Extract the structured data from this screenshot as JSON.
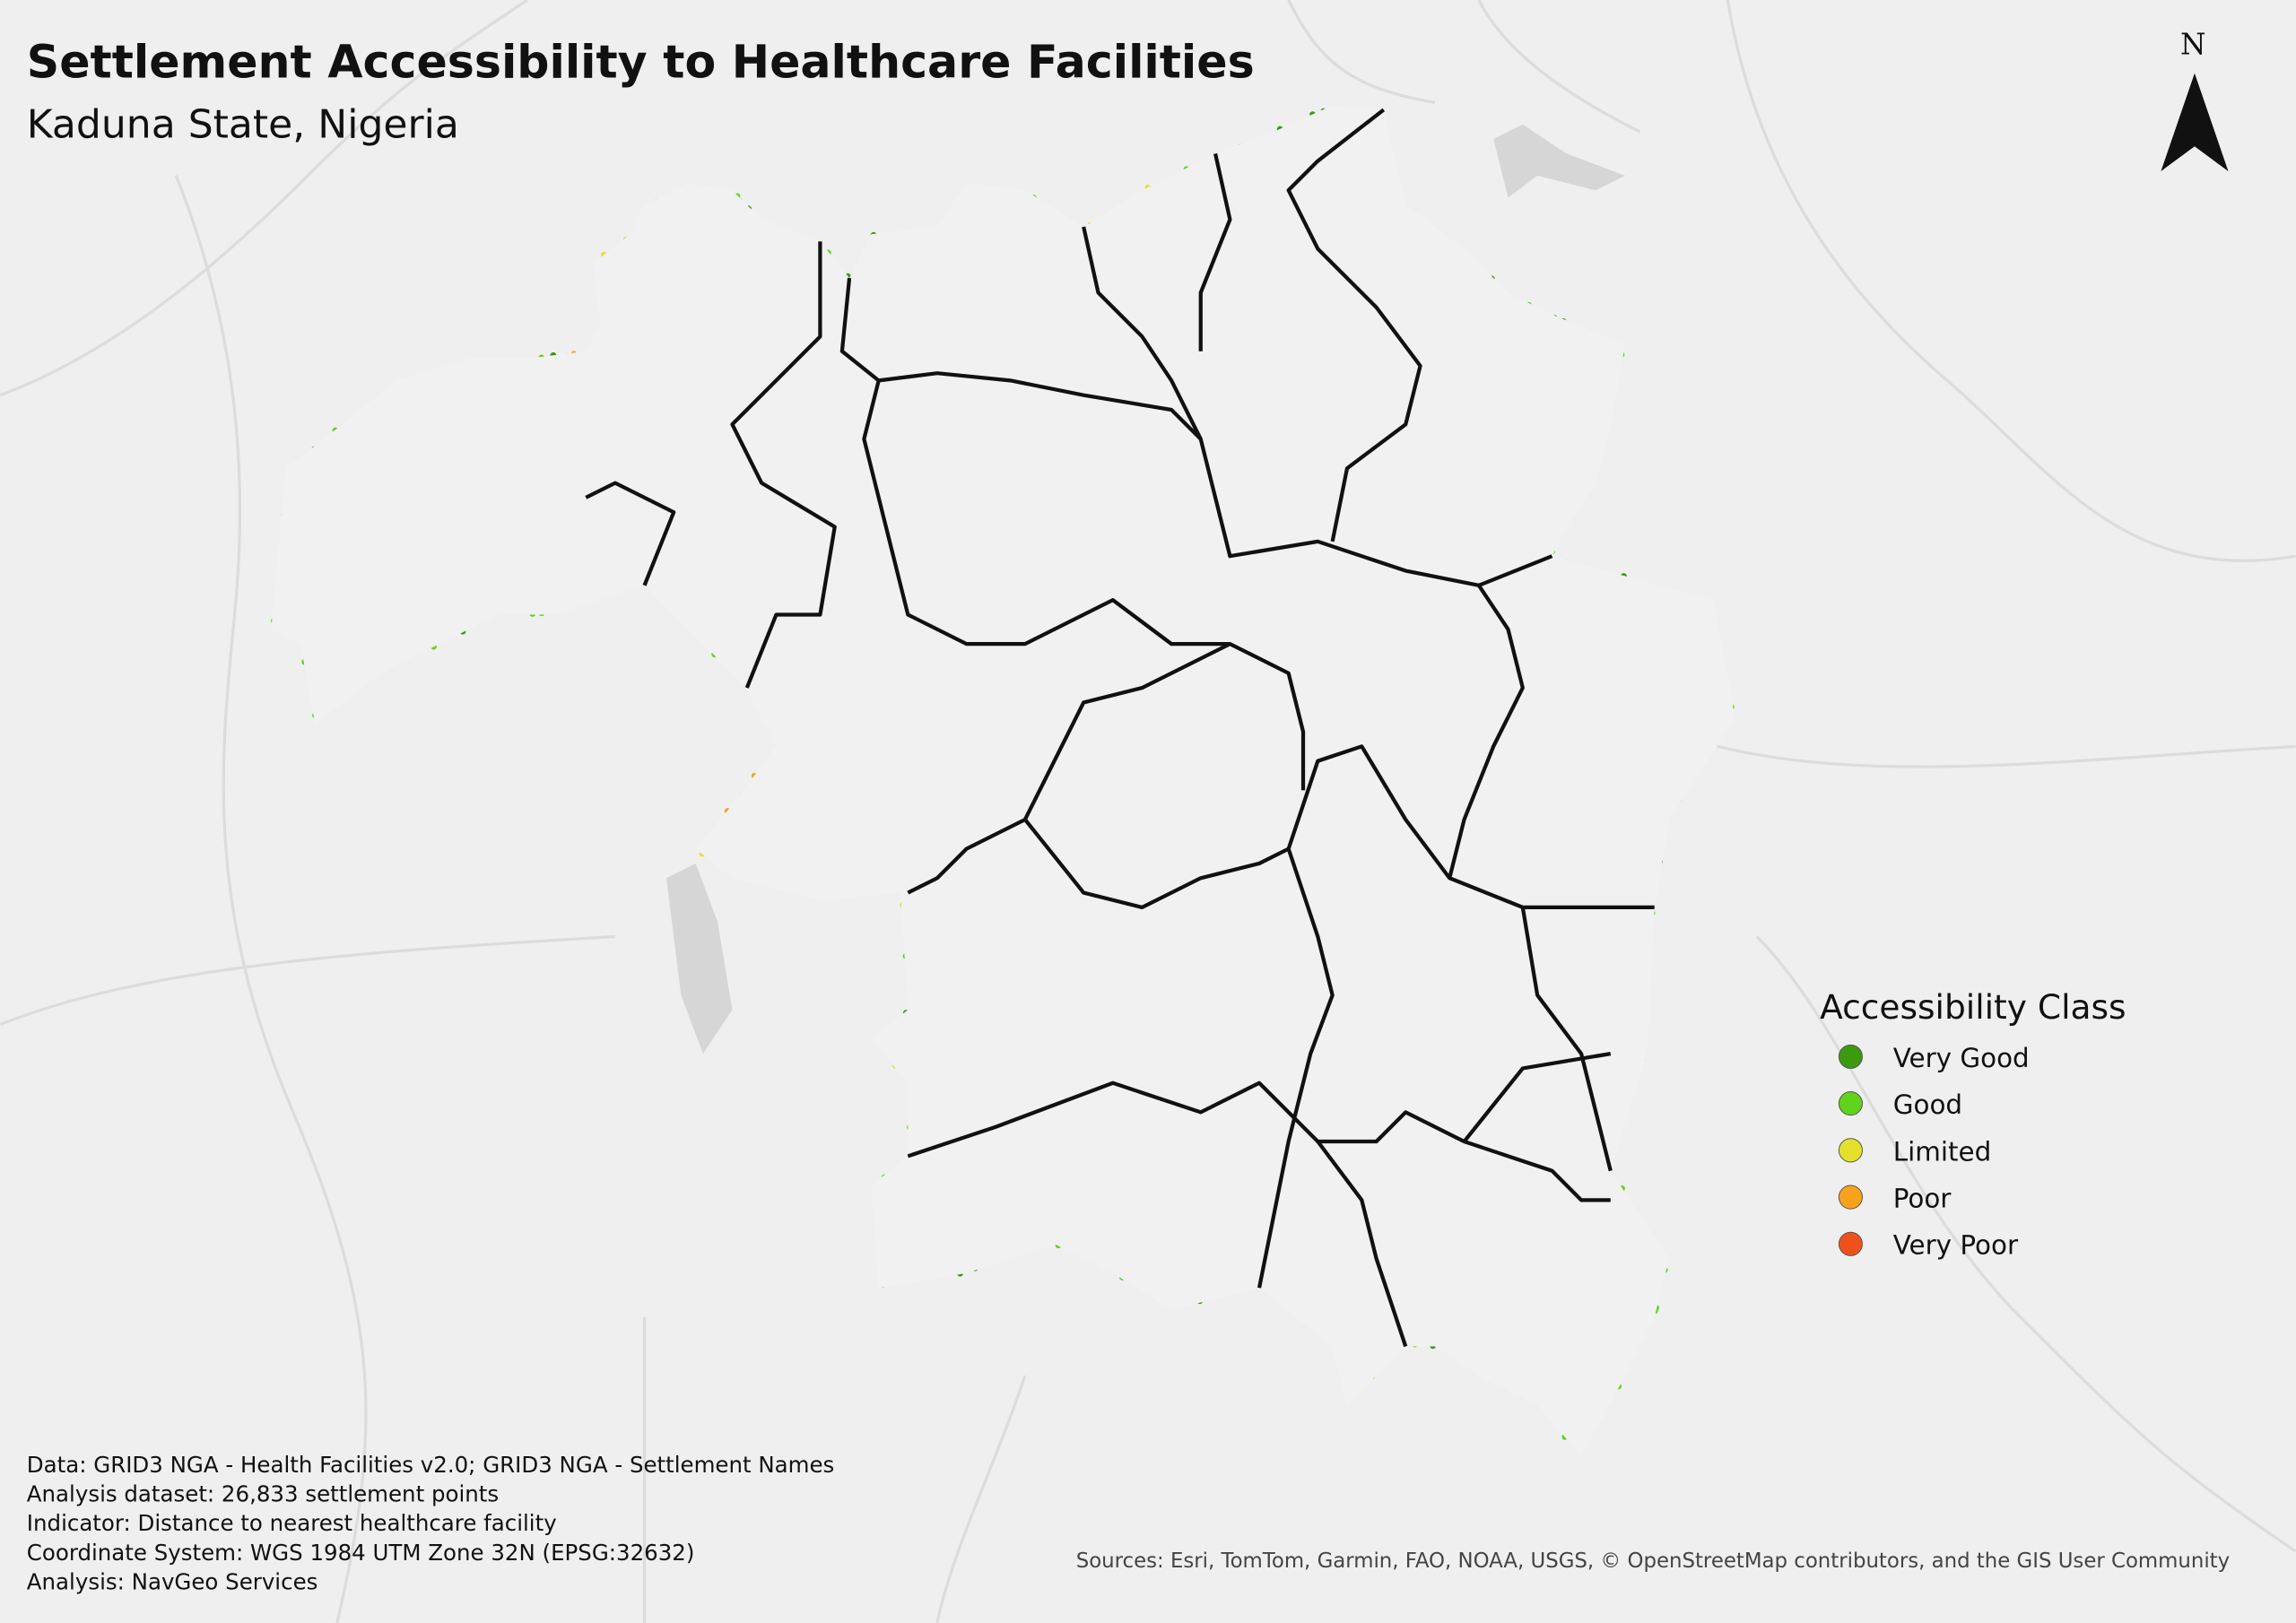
{
  "header": {
    "title": "Settlement Accessibility to Healthcare Facilities",
    "subtitle": "Kaduna State, Nigeria"
  },
  "north_arrow": {
    "label": "N"
  },
  "legend": {
    "title": "Accessibility Class",
    "items": [
      {
        "label": "Very Good",
        "color": "#3c9a0e"
      },
      {
        "label": "Good",
        "color": "#5fd41a"
      },
      {
        "label": "Limited",
        "color": "#e4e02c"
      },
      {
        "label": "Poor",
        "color": "#f6a21c"
      },
      {
        "label": "Very Poor",
        "color": "#f0511c"
      }
    ]
  },
  "notes": [
    "Data: GRID3 NGA - Health Facilities v2.0; GRID3 NGA - Settlement Names",
    "Analysis dataset: 26,833 settlement points",
    "Indicator: Distance to nearest healthcare facility",
    "Coordinate System: WGS 1984 UTM Zone 32N (EPSG:32632)",
    "Analysis: NavGeo Services"
  ],
  "attribution": "Sources: Esri, TomTom, Garmin, FAO, NOAA, USGS, © OpenStreetMap contributors, and the GIS User Community"
}
